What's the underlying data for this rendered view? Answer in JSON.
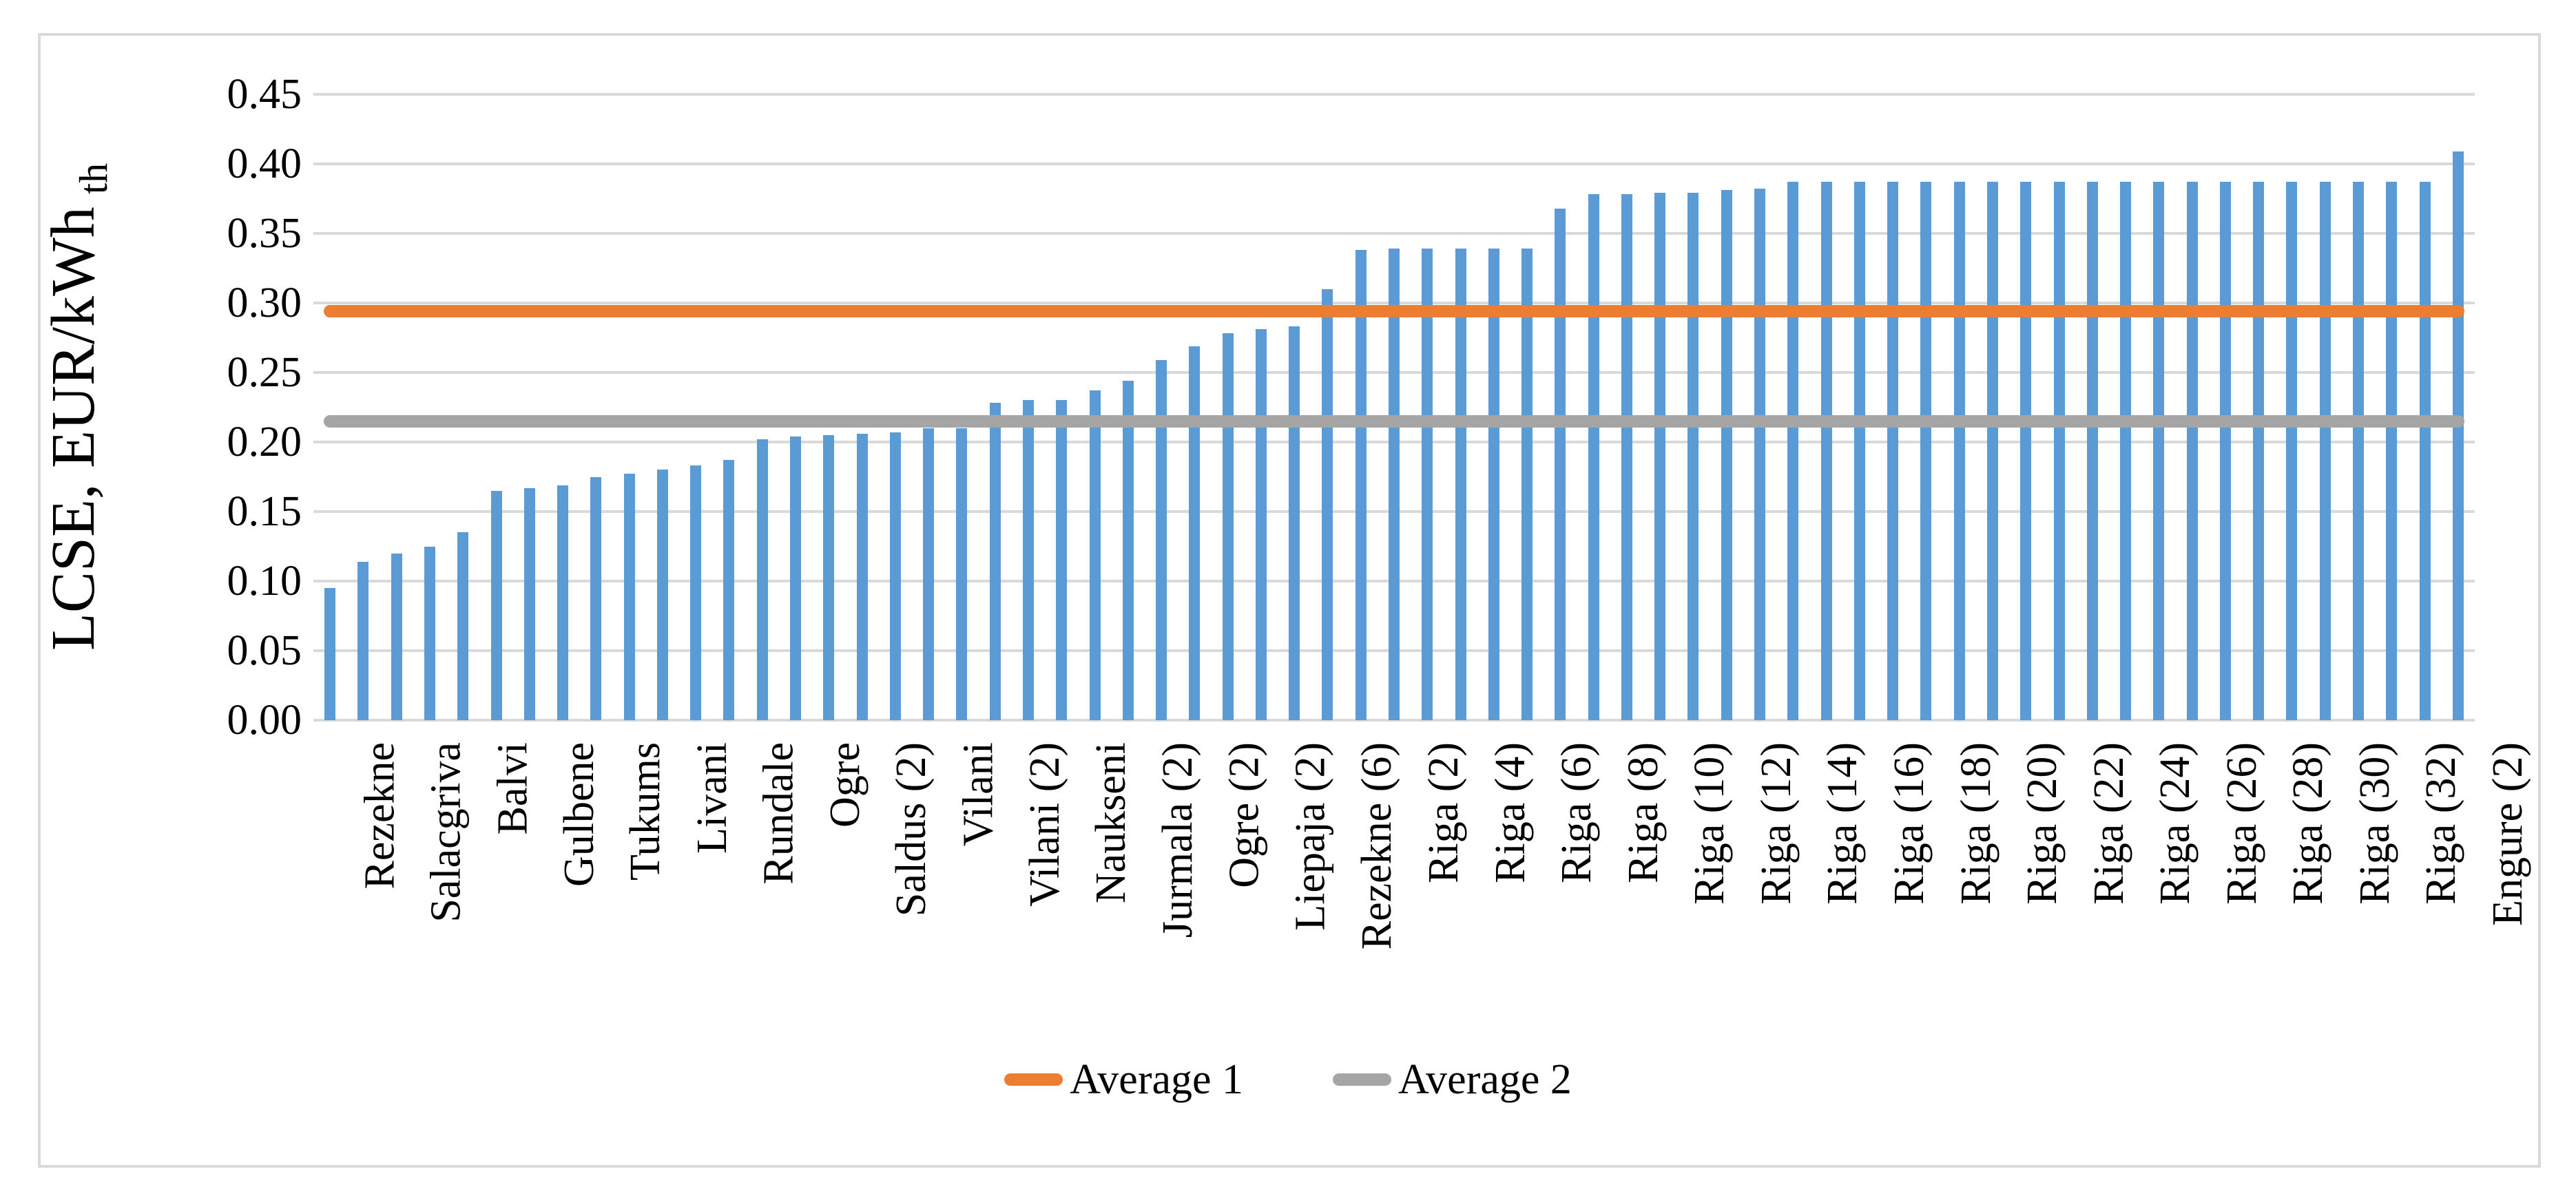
{
  "chart_data": {
    "type": "bar",
    "title": "",
    "ylabel": "LCSE, EUR/kWh",
    "ylabel_sub": "th",
    "ylim": [
      0,
      0.45
    ],
    "ytick_step": 0.05,
    "ytick_labels": [
      "0.00",
      "0.05",
      "0.10",
      "0.15",
      "0.20",
      "0.25",
      "0.30",
      "0.35",
      "0.40",
      "0.45"
    ],
    "grid": true,
    "bar_color": "#5b9bd5",
    "gridline_color": "#d9d9d9",
    "border_color": "#d9d9d9",
    "n_bars": 65,
    "tick_every": 2,
    "x_tick_labels": [
      "Rezekne",
      "Salacgriva",
      "Balvi",
      "Gulbene",
      "Tukums",
      "Livani",
      "Rundale",
      "Ogre",
      "Saldus (2)",
      "Vilani",
      "Vilani (2)",
      "Naukseni",
      "Jurmala (2)",
      "Ogre (2)",
      "Liepaja (2)",
      "Rezekne (6)",
      "Riga (2)",
      "Riga (4)",
      "Riga (6)",
      "Riga (8)",
      "Riga (10)",
      "Riga (12)",
      "Riga (14)",
      "Riga (16)",
      "Riga (18)",
      "Riga (20)",
      "Riga (22)",
      "Riga (24)",
      "Riga (26)",
      "Riga (28)",
      "Riga (30)",
      "Riga (32)",
      "Engure (2)"
    ],
    "values": [
      0.095,
      0.114,
      0.12,
      0.125,
      0.135,
      0.165,
      0.167,
      0.169,
      0.175,
      0.177,
      0.18,
      0.183,
      0.187,
      0.202,
      0.204,
      0.205,
      0.206,
      0.207,
      0.21,
      0.21,
      0.228,
      0.23,
      0.23,
      0.237,
      0.244,
      0.259,
      0.269,
      0.278,
      0.281,
      0.283,
      0.31,
      0.338,
      0.339,
      0.339,
      0.339,
      0.339,
      0.339,
      0.368,
      0.378,
      0.378,
      0.379,
      0.379,
      0.381,
      0.382,
      0.387,
      0.387,
      0.387,
      0.387,
      0.387,
      0.387,
      0.387,
      0.387,
      0.387,
      0.387,
      0.387,
      0.387,
      0.387,
      0.387,
      0.387,
      0.387,
      0.387,
      0.387,
      0.387,
      0.387,
      0.409
    ],
    "average_lines": [
      {
        "name": "Average 1",
        "value": 0.294,
        "color": "#ed7d31"
      },
      {
        "name": "Average 2",
        "value": 0.215,
        "color": "#a5a5a5"
      }
    ],
    "legend_position": "bottom"
  }
}
